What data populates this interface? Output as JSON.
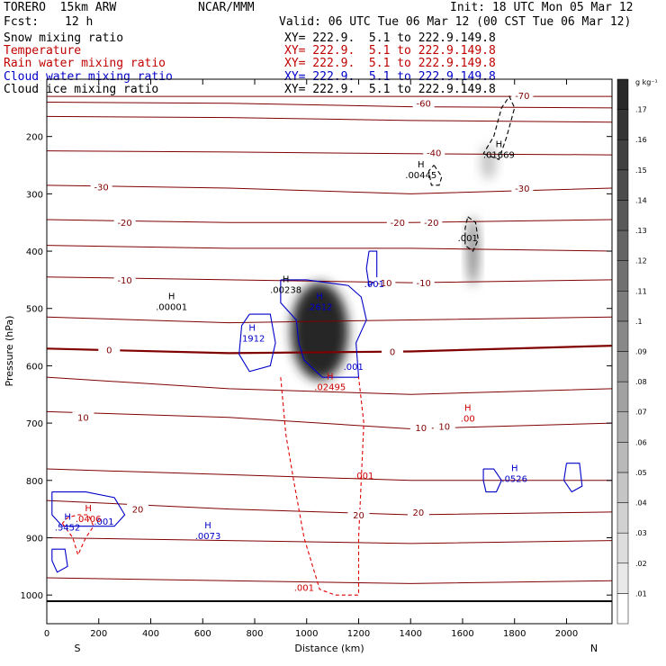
{
  "header": {
    "model": "TORERO  15km ARW",
    "center": "NCAR/MMM",
    "init": "Init: 18 UTC Mon 05 Mar 12",
    "fcst_label": "Fcst:",
    "fcst_value": "12 h",
    "valid": "Valid: 06 UTC Tue 06 Mar 12 (00 CST Tue 06 Mar 12)"
  },
  "fields": [
    {
      "name": "Snow mixing ratio",
      "color": "#000000",
      "xy": "XY= 222.9.  5.1 to 222.9.149.8"
    },
    {
      "name": "Temperature",
      "color": "#c00000",
      "xy": "XY= 222.9.  5.1 to 222.9.149.8"
    },
    {
      "name": "Rain water mixing ratio",
      "color": "#c00000",
      "xy": "XY= 222.9.  5.1 to 222.9.149.8"
    },
    {
      "name": "Cloud water mixing ratio",
      "color": "#0000c8",
      "xy": "XY= 222.9.  5.1 to 222.9.149.8"
    },
    {
      "name": "Cloud ice mixing ratio",
      "color": "#000000",
      "xy": "XY= 222.9.  5.1 to 222.9.149.8"
    }
  ],
  "chart_data": {
    "type": "heatmap",
    "xlabel": "Distance (km)",
    "ylabel": "Pressure (hPa)",
    "xlim": [
      0,
      2175
    ],
    "ylim": [
      1050,
      100
    ],
    "x_ticks": [
      0,
      200,
      400,
      600,
      800,
      1000,
      1200,
      1400,
      1600,
      1800,
      2000
    ],
    "y_ticks": [
      200,
      300,
      400,
      500,
      600,
      700,
      800,
      900,
      1000
    ],
    "left_end_label": "S",
    "right_end_label": "N",
    "colorbar": {
      "units": "g kg⁻¹",
      "levels": [
        0.01,
        0.02,
        0.03,
        0.04,
        0.05,
        0.06,
        0.07,
        0.08,
        0.09,
        0.1,
        0.11,
        0.12,
        0.13,
        0.14,
        0.15,
        0.16,
        0.17
      ],
      "labels": [
        ".01",
        ".02",
        ".03",
        ".04",
        ".05",
        ".06",
        ".07",
        ".08",
        ".09",
        ".1",
        ".11",
        ".12",
        ".13",
        ".14",
        ".15",
        ".16",
        ".17"
      ]
    },
    "snow_shading": [
      {
        "x": 1050,
        "p": 540,
        "rx": 110,
        "rp": 85,
        "value": 0.17
      },
      {
        "x": 1640,
        "p": 400,
        "rx": 22,
        "rp": 60,
        "value": 0.09
      },
      {
        "x": 1700,
        "p": 245,
        "rx": 30,
        "rp": 30,
        "value": 0.04
      }
    ],
    "isotherms": [
      {
        "value": -70,
        "p": [
          130,
          130,
          130,
          130
        ],
        "labels": [
          {
            "x": 1830,
            "p": 128,
            "text": "-70"
          }
        ]
      },
      {
        "value": -60,
        "p": [
          140,
          142,
          148,
          150
        ],
        "labels": [
          {
            "x": 1450,
            "p": 142,
            "text": "-60"
          }
        ]
      },
      {
        "value": -50,
        "p": [
          165,
          167,
          172,
          175
        ],
        "labels": []
      },
      {
        "value": -40,
        "p": [
          225,
          227,
          230,
          232
        ],
        "labels": [
          {
            "x": 1490,
            "p": 228,
            "text": "-40"
          }
        ]
      },
      {
        "value": -30,
        "p": [
          285,
          290,
          300,
          290
        ],
        "labels": [
          {
            "x": 210,
            "p": 288,
            "text": "-30"
          },
          {
            "x": 1830,
            "p": 290,
            "text": "-30"
          }
        ]
      },
      {
        "value": -20,
        "p": [
          345,
          350,
          350,
          345
        ],
        "labels": [
          {
            "x": 300,
            "p": 350,
            "text": "-20"
          },
          {
            "x": 1350,
            "p": 350,
            "text": "-20"
          },
          {
            "x": 1480,
            "p": 350,
            "text": "-20"
          }
        ]
      },
      {
        "value": -15,
        "p": [
          390,
          395,
          395,
          400
        ],
        "labels": []
      },
      {
        "value": -10,
        "p": [
          445,
          450,
          455,
          450
        ],
        "labels": [
          {
            "x": 300,
            "p": 450,
            "text": "-10"
          },
          {
            "x": 1300,
            "p": 455,
            "text": "-10"
          },
          {
            "x": 1450,
            "p": 455,
            "text": "-10"
          }
        ]
      },
      {
        "value": -5,
        "p": [
          515,
          525,
          520,
          515
        ],
        "labels": []
      },
      {
        "value": 0,
        "p": [
          570,
          578,
          575,
          565
        ],
        "labels": [
          {
            "x": 240,
            "p": 572,
            "text": "0"
          },
          {
            "x": 1330,
            "p": 575,
            "text": "0"
          }
        ]
      },
      {
        "value": 5,
        "p": [
          620,
          640,
          650,
          640
        ],
        "labels": []
      },
      {
        "value": 10,
        "p": [
          680,
          690,
          710,
          700
        ],
        "labels": [
          {
            "x": 140,
            "p": 690,
            "text": "10"
          },
          {
            "x": 1440,
            "p": 708,
            "text": "10"
          },
          {
            "x": 1530,
            "p": 705,
            "text": "10"
          }
        ]
      },
      {
        "value": 15,
        "p": [
          780,
          790,
          800,
          800
        ],
        "labels": []
      },
      {
        "value": 20,
        "p": [
          835,
          850,
          860,
          855
        ],
        "labels": [
          {
            "x": 350,
            "p": 850,
            "text": "20"
          },
          {
            "x": 1200,
            "p": 860,
            "text": "20"
          },
          {
            "x": 1430,
            "p": 855,
            "text": "20"
          }
        ]
      },
      {
        "value": 25,
        "p": [
          900,
          905,
          910,
          905
        ],
        "labels": []
      },
      {
        "value": 30,
        "p": [
          970,
          975,
          980,
          975
        ],
        "labels": []
      }
    ],
    "maxima": [
      {
        "field": "Cloud ice mixing ratio",
        "x": 480,
        "p": 490,
        "label": "H",
        "value": ".00001"
      },
      {
        "field": "Cloud ice mixing ratio",
        "x": 920,
        "p": 460,
        "label": "H",
        "value": ".00238"
      },
      {
        "field": "Cloud ice mixing ratio",
        "x": 1440,
        "p": 260,
        "label": "H",
        "value": ".00445"
      },
      {
        "field": "Cloud ice mixing ratio",
        "x": 1740,
        "p": 225,
        "label": "H",
        "value": ".01669"
      },
      {
        "field": "Cloud ice mixing ratio",
        "x": 1620,
        "p": 370,
        "label": "",
        "value": ".001"
      },
      {
        "field": "Cloud water mixing ratio",
        "x": 1050,
        "p": 490,
        "label": "H",
        "value": ".2612"
      },
      {
        "field": "Cloud water mixing ratio",
        "x": 790,
        "p": 545,
        "label": "H",
        "value": ".1912"
      },
      {
        "field": "Cloud water mixing ratio",
        "x": 1260,
        "p": 450,
        "label": "",
        "value": ".001"
      },
      {
        "field": "Cloud water mixing ratio",
        "x": 1180,
        "p": 595,
        "label": "",
        "value": ".001"
      },
      {
        "field": "Cloud water mixing ratio",
        "x": 1800,
        "p": 790,
        "label": "H",
        "value": ".0526"
      },
      {
        "field": "Cloud water mixing ratio",
        "x": 620,
        "p": 890,
        "label": "H",
        "value": ".0073"
      },
      {
        "field": "Cloud water mixing ratio",
        "x": 80,
        "p": 875,
        "label": "H",
        "value": ".5452"
      },
      {
        "field": "Cloud water mixing ratio",
        "x": 220,
        "p": 865,
        "label": "",
        "value": ".001"
      },
      {
        "field": "Rain water mixing ratio",
        "x": 1090,
        "p": 630,
        "label": "H",
        "value": ".02495"
      },
      {
        "field": "Rain water mixing ratio",
        "x": 160,
        "p": 860,
        "label": "H",
        "value": ".0406"
      },
      {
        "field": "Rain water mixing ratio",
        "x": 1620,
        "p": 685,
        "label": "H",
        "value": ".00"
      },
      {
        "field": "Rain water mixing ratio",
        "x": 1220,
        "p": 785,
        "label": "",
        "value": ".001"
      },
      {
        "field": "Rain water mixing ratio",
        "x": 990,
        "p": 980,
        "label": "",
        "value": ".001"
      }
    ],
    "cloud_water_contours": [
      [
        [
          900,
          450
        ],
        [
          1000,
          450
        ],
        [
          1160,
          460
        ],
        [
          1210,
          480
        ],
        [
          1230,
          520
        ],
        [
          1190,
          560
        ],
        [
          1200,
          620
        ],
        [
          1060,
          620
        ],
        [
          990,
          590
        ],
        [
          970,
          560
        ],
        [
          960,
          520
        ],
        [
          900,
          490
        ],
        [
          900,
          450
        ]
      ],
      [
        [
          780,
          510
        ],
        [
          860,
          510
        ],
        [
          880,
          560
        ],
        [
          860,
          600
        ],
        [
          780,
          610
        ],
        [
          740,
          580
        ],
        [
          750,
          530
        ],
        [
          780,
          510
        ]
      ],
      [
        [
          1240,
          400
        ],
        [
          1270,
          400
        ],
        [
          1270,
          450
        ],
        [
          1240,
          460
        ],
        [
          1230,
          430
        ],
        [
          1240,
          400
        ]
      ],
      [
        [
          1680,
          780
        ],
        [
          1720,
          780
        ],
        [
          1750,
          800
        ],
        [
          1730,
          820
        ],
        [
          1690,
          820
        ],
        [
          1680,
          800
        ],
        [
          1680,
          780
        ]
      ],
      [
        [
          2000,
          770
        ],
        [
          2050,
          770
        ],
        [
          2060,
          810
        ],
        [
          2020,
          820
        ],
        [
          1990,
          800
        ],
        [
          2000,
          770
        ]
      ],
      [
        [
          20,
          820
        ],
        [
          150,
          820
        ],
        [
          260,
          830
        ],
        [
          300,
          860
        ],
        [
          260,
          880
        ],
        [
          160,
          880
        ],
        [
          60,
          880
        ],
        [
          20,
          860
        ],
        [
          20,
          820
        ]
      ],
      [
        [
          20,
          920
        ],
        [
          70,
          920
        ],
        [
          80,
          950
        ],
        [
          40,
          960
        ],
        [
          20,
          940
        ],
        [
          20,
          920
        ]
      ]
    ],
    "rain_water_contours": [
      [
        [
          900,
          620
        ],
        [
          920,
          720
        ],
        [
          950,
          800
        ],
        [
          990,
          900
        ],
        [
          1050,
          990
        ],
        [
          1110,
          1000
        ],
        [
          1200,
          1000
        ],
        [
          1200,
          900
        ],
        [
          1210,
          800
        ],
        [
          1220,
          700
        ],
        [
          1200,
          620
        ]
      ],
      [
        [
          60,
          875
        ],
        [
          100,
          900
        ],
        [
          120,
          930
        ],
        [
          150,
          900
        ],
        [
          180,
          880
        ],
        [
          160,
          860
        ],
        [
          120,
          860
        ],
        [
          80,
          865
        ],
        [
          60,
          875
        ]
      ]
    ],
    "cloud_ice_contours": [
      [
        [
          1490,
          250
        ],
        [
          1520,
          270
        ],
        [
          1510,
          285
        ],
        [
          1480,
          285
        ],
        [
          1470,
          260
        ],
        [
          1490,
          250
        ]
      ],
      [
        [
          1680,
          230
        ],
        [
          1740,
          240
        ],
        [
          1770,
          200
        ],
        [
          1800,
          150
        ],
        [
          1780,
          130
        ],
        [
          1750,
          150
        ],
        [
          1720,
          200
        ],
        [
          1680,
          230
        ]
      ],
      [
        [
          1620,
          340
        ],
        [
          1650,
          350
        ],
        [
          1660,
          380
        ],
        [
          1640,
          400
        ],
        [
          1610,
          390
        ],
        [
          1610,
          360
        ],
        [
          1620,
          340
        ]
      ]
    ]
  }
}
